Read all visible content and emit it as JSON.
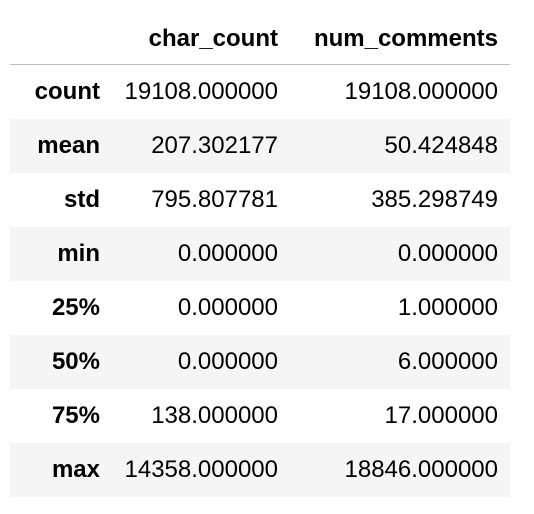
{
  "table": {
    "columns": [
      "",
      "char_count",
      "num_comments"
    ],
    "rows": [
      {
        "label": "count",
        "char_count": "19108.000000",
        "num_comments": "19108.000000"
      },
      {
        "label": "mean",
        "char_count": "207.302177",
        "num_comments": "50.424848"
      },
      {
        "label": "std",
        "char_count": "795.807781",
        "num_comments": "385.298749"
      },
      {
        "label": "min",
        "char_count": "0.000000",
        "num_comments": "0.000000"
      },
      {
        "label": "25%",
        "char_count": "0.000000",
        "num_comments": "1.000000"
      },
      {
        "label": "50%",
        "char_count": "0.000000",
        "num_comments": "6.000000"
      },
      {
        "label": "75%",
        "char_count": "138.000000",
        "num_comments": "17.000000"
      },
      {
        "label": "max",
        "char_count": "14358.000000",
        "num_comments": "18846.000000"
      }
    ]
  }
}
